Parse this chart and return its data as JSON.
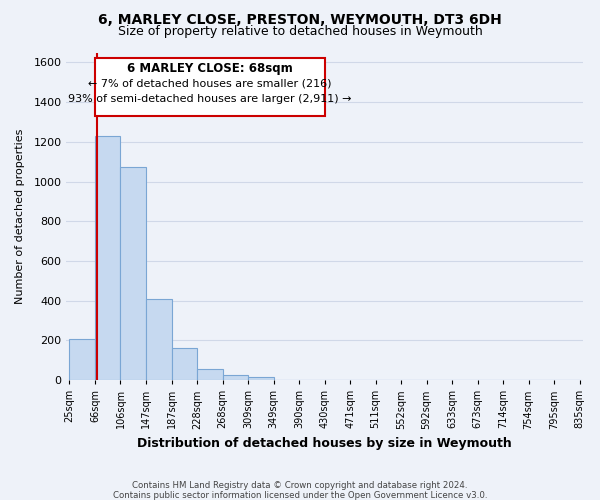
{
  "title": "6, MARLEY CLOSE, PRESTON, WEYMOUTH, DT3 6DH",
  "subtitle": "Size of property relative to detached houses in Weymouth",
  "xlabel": "Distribution of detached houses by size in Weymouth",
  "ylabel": "Number of detached properties",
  "bin_edges": [
    25,
    66,
    106,
    147,
    187,
    228,
    268,
    309,
    349,
    390,
    430,
    471,
    511,
    552,
    592,
    633,
    673,
    714,
    754,
    795,
    835
  ],
  "bin_labels": [
    "25sqm",
    "66sqm",
    "106sqm",
    "147sqm",
    "187sqm",
    "228sqm",
    "268sqm",
    "309sqm",
    "349sqm",
    "390sqm",
    "430sqm",
    "471sqm",
    "511sqm",
    "552sqm",
    "592sqm",
    "633sqm",
    "673sqm",
    "714sqm",
    "754sqm",
    "795sqm",
    "835sqm"
  ],
  "bar_heights": [
    205,
    1230,
    1075,
    410,
    160,
    55,
    25,
    15,
    0,
    0,
    0,
    0,
    0,
    0,
    0,
    0,
    0,
    0,
    0,
    0
  ],
  "bar_color": "#c6d9f0",
  "bar_edge_color": "#7aa6d4",
  "marker_value": 68,
  "marker_color": "#cc0000",
  "ylim": [
    0,
    1650
  ],
  "yticks": [
    0,
    200,
    400,
    600,
    800,
    1000,
    1200,
    1400,
    1600
  ],
  "annotation_title": "6 MARLEY CLOSE: 68sqm",
  "annotation_line1": "← 7% of detached houses are smaller (216)",
  "annotation_line2": "93% of semi-detached houses are larger (2,911) →",
  "footer1": "Contains HM Land Registry data © Crown copyright and database right 2024.",
  "footer2": "Contains public sector information licensed under the Open Government Licence v3.0.",
  "background_color": "#eef2f9",
  "plot_background": "#eef2f9",
  "grid_color": "#d0d8e8",
  "title_fontsize": 10,
  "subtitle_fontsize": 9
}
